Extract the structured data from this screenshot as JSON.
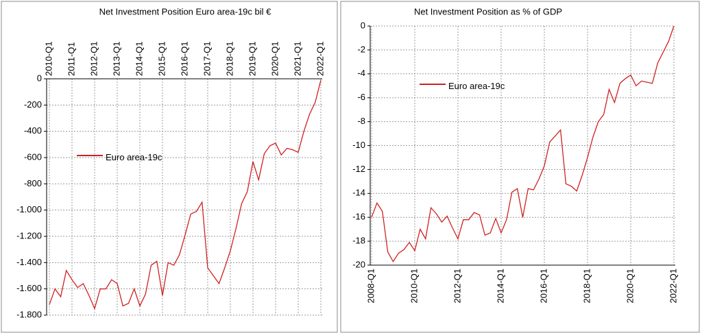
{
  "chart_data": [
    {
      "type": "line",
      "title": "Net Investment Position  Euro area-19c bil €",
      "categories": [
        "2010-Q1",
        null,
        null,
        null,
        "2011-Q1",
        null,
        null,
        null,
        "2012-Q1",
        null,
        null,
        null,
        "2013-Q1",
        null,
        null,
        null,
        "2014-Q1",
        null,
        null,
        null,
        "2015-Q1",
        null,
        null,
        null,
        "2016-Q1",
        null,
        null,
        null,
        "2017-Q1",
        null,
        null,
        null,
        "2018-Q1",
        null,
        null,
        null,
        "2019-Q1",
        null,
        null,
        null,
        "2020-Q1",
        null,
        null,
        null,
        "2021-Q1",
        null,
        null,
        null,
        "2022-Q1"
      ],
      "series": [
        {
          "name": "Euro area-19c",
          "color": "#d02020",
          "values": [
            -1720,
            -1600,
            -1660,
            -1460,
            -1530,
            -1590,
            -1560,
            -1650,
            -1750,
            -1600,
            -1600,
            -1530,
            -1560,
            -1730,
            -1710,
            -1600,
            -1730,
            -1640,
            -1420,
            -1390,
            -1650,
            -1400,
            -1420,
            -1340,
            -1190,
            -1030,
            -1010,
            -940,
            -1440,
            -1500,
            -1560,
            -1440,
            -1310,
            -1140,
            -950,
            -860,
            -630,
            -770,
            -570,
            -510,
            -490,
            -580,
            -530,
            -540,
            -560,
            -400,
            -270,
            -180,
            -10
          ]
        }
      ],
      "ylim": [
        -1800,
        0
      ],
      "yticks": [
        {
          "value": -1800,
          "label": "-1.800"
        },
        {
          "value": -1600,
          "label": "-1.600"
        },
        {
          "value": -1400,
          "label": "-1.400"
        },
        {
          "value": -1200,
          "label": "-1.200"
        },
        {
          "value": -1000,
          "label": "-1.000"
        },
        -800,
        -600,
        -400,
        -200,
        0
      ],
      "grid": true,
      "x_axis_position": "top"
    },
    {
      "type": "line",
      "title": "Net Investment Position as % of GDP",
      "categories": [
        "2008-Q1",
        null,
        null,
        null,
        null,
        null,
        null,
        null,
        "2010-Q1",
        null,
        null,
        null,
        null,
        null,
        null,
        null,
        "2012-Q1",
        null,
        null,
        null,
        null,
        null,
        null,
        null,
        "2014-Q1",
        null,
        null,
        null,
        null,
        null,
        null,
        null,
        "2016-Q1",
        null,
        null,
        null,
        null,
        null,
        null,
        null,
        "2018-Q1",
        null,
        null,
        null,
        null,
        null,
        null,
        null,
        "2020-Q1",
        null,
        null,
        null,
        null,
        null,
        null,
        null,
        "2022-Q1"
      ],
      "series": [
        {
          "name": "Euro area-19c",
          "color": "#d02020",
          "values": [
            -16,
            -14.8,
            -15.5,
            -18.9,
            -19.7,
            -19,
            -18.7,
            -18.1,
            -18.8,
            -17,
            -17.8,
            -15.2,
            -15.7,
            -16.4,
            -15.9,
            -16.9,
            -17.8,
            -16.2,
            -16.2,
            -15.6,
            -15.8,
            -17.5,
            -17.3,
            -16.1,
            -17.3,
            -16.2,
            -13.9,
            -13.6,
            -16,
            -13.6,
            -13.7,
            -12.8,
            -11.7,
            -9.7,
            -9.2,
            -8.7,
            -13.2,
            -13.4,
            -13.8,
            -12.5,
            -11,
            -9.3,
            -8,
            -7.4,
            -5.3,
            -6.4,
            -4.8,
            -4.4,
            -4.1,
            -5,
            -4.6,
            -4.7,
            -4.8,
            -3.1,
            -2.2,
            -1.3,
            0
          ]
        }
      ],
      "ylim": [
        -20,
        0
      ],
      "yticks": [
        -20,
        -18,
        -16,
        -14,
        -12,
        -10,
        -8,
        -6,
        -4,
        -2,
        0
      ],
      "grid": true,
      "x_axis_position": "bottom"
    }
  ]
}
